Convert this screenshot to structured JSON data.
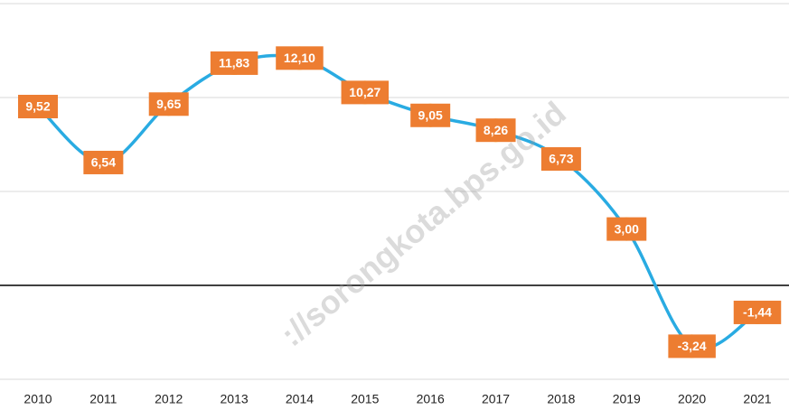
{
  "chart_data": {
    "type": "line",
    "categories": [
      "2010",
      "2011",
      "2012",
      "2013",
      "2014",
      "2015",
      "2016",
      "2017",
      "2018",
      "2019",
      "2020",
      "2021"
    ],
    "series": [
      {
        "color": "#29abe2",
        "values": [
          9.52,
          6.54,
          9.65,
          11.83,
          12.1,
          10.27,
          9.05,
          8.26,
          6.73,
          3.0,
          -3.24,
          -1.44
        ],
        "value_labels": [
          "9,52",
          "6,54",
          "9,65",
          "11,83",
          "12,10",
          "10,27",
          "9,05",
          "8,26",
          "6,73",
          "3,00",
          "-3,24",
          "-1,44"
        ]
      }
    ],
    "ylim": [
      -5,
      15
    ],
    "yticks": [
      -5,
      0,
      5,
      10,
      15
    ],
    "grid": true,
    "marker_color": "#ffc000",
    "label_color": "#ed7d31",
    "watermark": "://sorongkota.bps.go.id"
  }
}
